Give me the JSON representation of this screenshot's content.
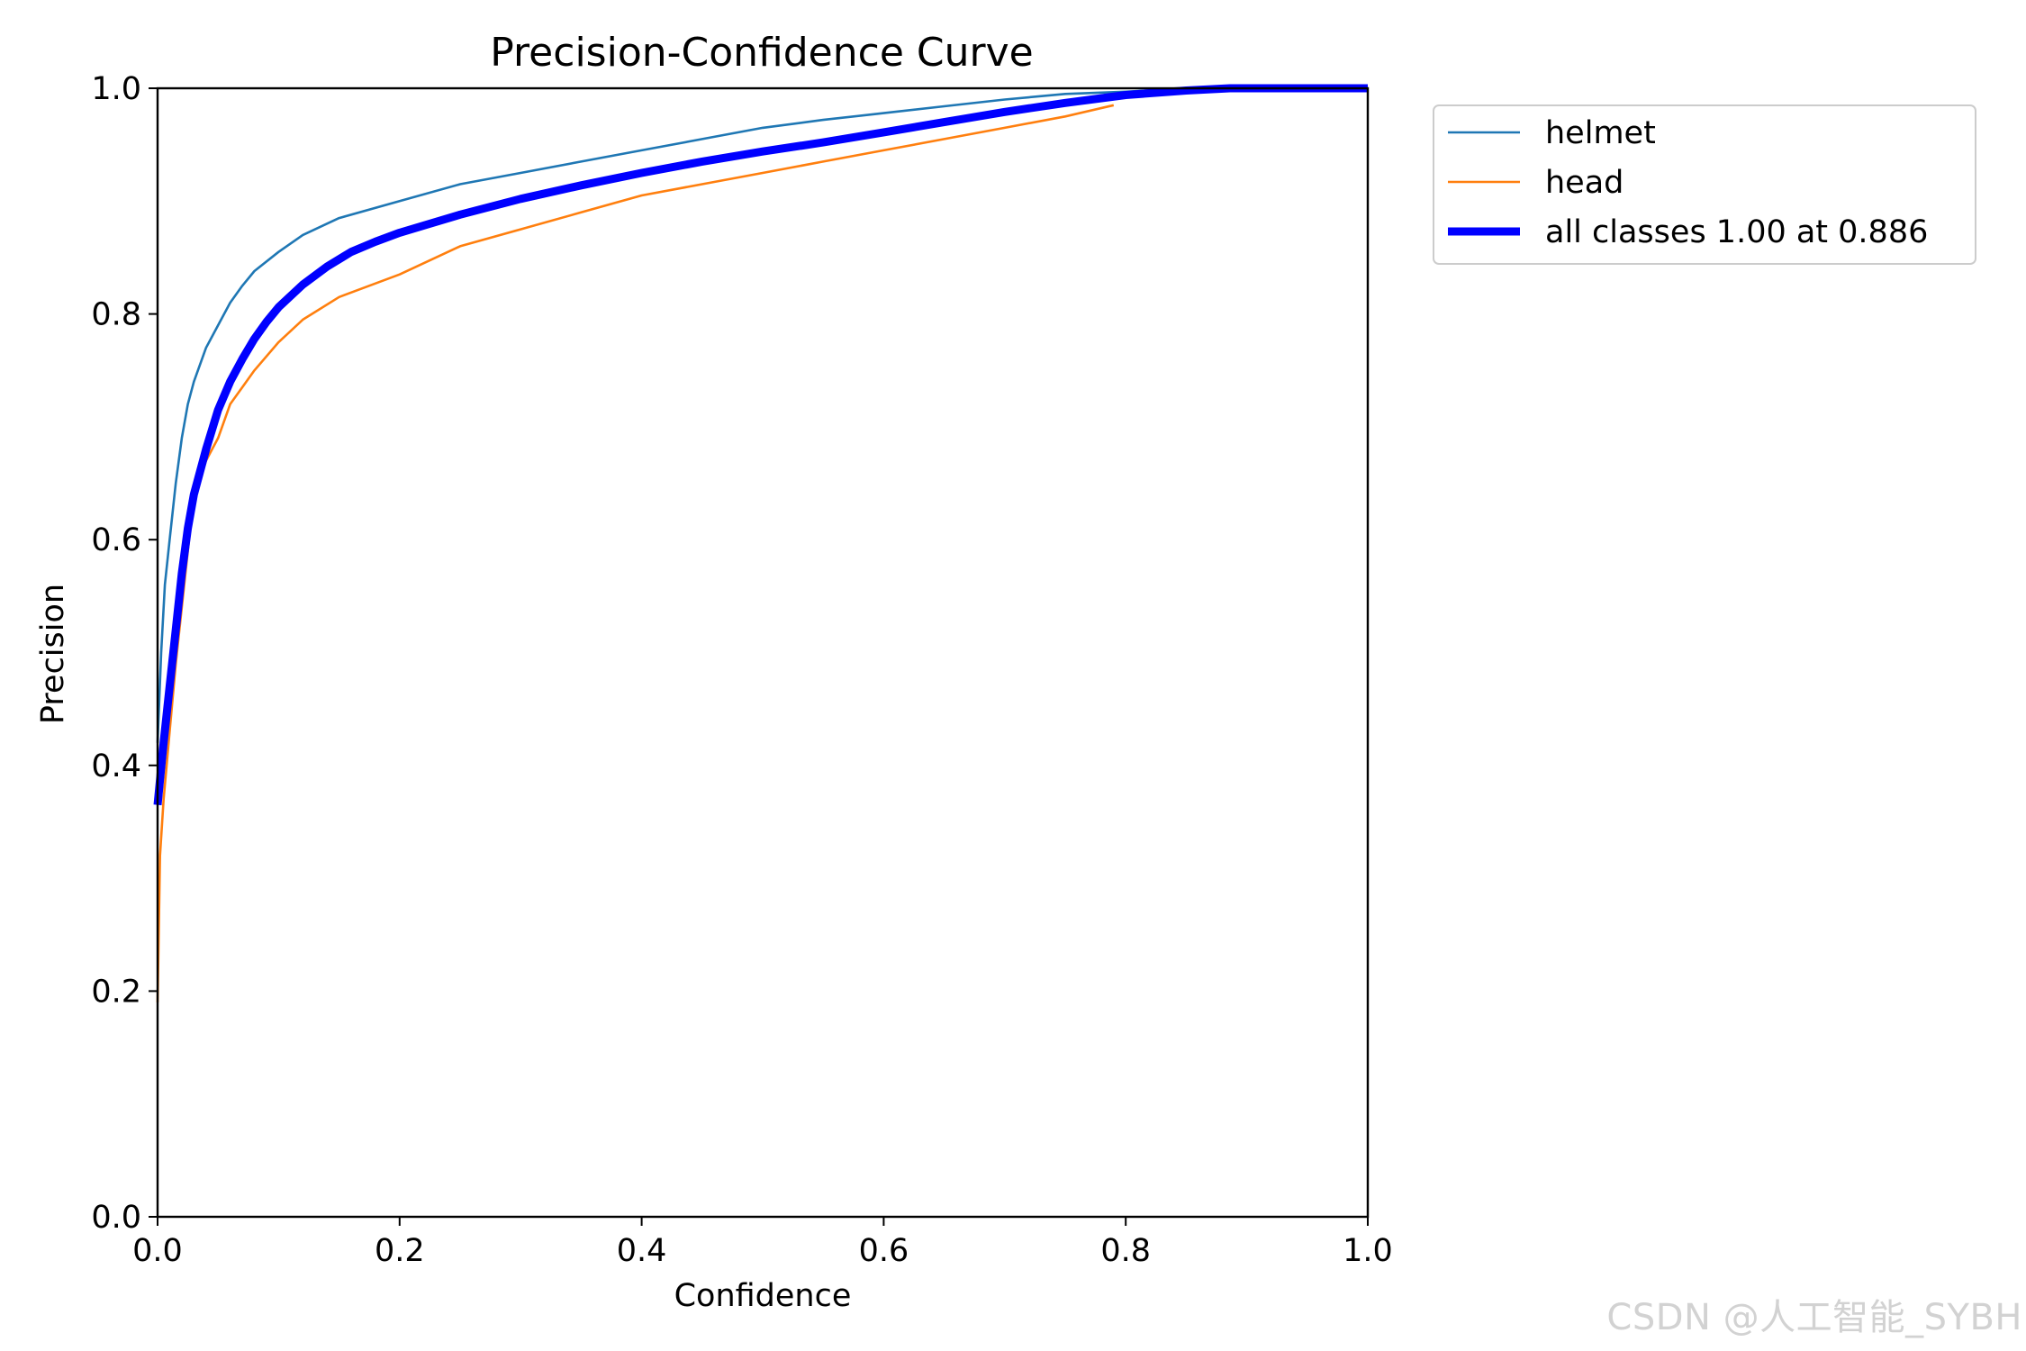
{
  "watermark": "CSDN @人工智能_SYBH",
  "chart_data": {
    "type": "line",
    "title": "Precision-Confidence Curve",
    "xlabel": "Confidence",
    "ylabel": "Precision",
    "xlim": [
      0.0,
      1.0
    ],
    "ylim": [
      0.0,
      1.0
    ],
    "xticks": [
      "0.0",
      "0.2",
      "0.4",
      "0.6",
      "0.8",
      "1.0"
    ],
    "yticks": [
      "0.0",
      "0.2",
      "0.4",
      "0.6",
      "0.8",
      "1.0"
    ],
    "grid": false,
    "legend_position": "outside-top-right",
    "series": [
      {
        "name": "helmet",
        "color": "#1f77b4",
        "style": "thin",
        "x": [
          0.0,
          0.003,
          0.006,
          0.01,
          0.015,
          0.02,
          0.025,
          0.03,
          0.04,
          0.05,
          0.06,
          0.07,
          0.08,
          0.1,
          0.12,
          0.15,
          0.2,
          0.25,
          0.3,
          0.35,
          0.4,
          0.45,
          0.5,
          0.55,
          0.6,
          0.65,
          0.7,
          0.75,
          0.8,
          0.85,
          0.9,
          1.0
        ],
        "y": [
          0.42,
          0.5,
          0.56,
          0.6,
          0.65,
          0.69,
          0.72,
          0.74,
          0.77,
          0.79,
          0.81,
          0.825,
          0.838,
          0.855,
          0.87,
          0.885,
          0.9,
          0.915,
          0.925,
          0.935,
          0.945,
          0.955,
          0.965,
          0.972,
          0.978,
          0.984,
          0.99,
          0.995,
          0.997,
          1.0,
          1.0,
          1.0
        ]
      },
      {
        "name": "head",
        "color": "#ff7f0e",
        "style": "thin",
        "x": [
          0.0,
          0.002,
          0.005,
          0.01,
          0.015,
          0.02,
          0.025,
          0.03,
          0.04,
          0.05,
          0.06,
          0.07,
          0.08,
          0.1,
          0.12,
          0.15,
          0.2,
          0.25,
          0.3,
          0.35,
          0.4,
          0.45,
          0.5,
          0.55,
          0.6,
          0.65,
          0.7,
          0.75,
          0.79
        ],
        "y": [
          0.19,
          0.32,
          0.37,
          0.43,
          0.49,
          0.54,
          0.59,
          0.64,
          0.67,
          0.69,
          0.72,
          0.735,
          0.75,
          0.775,
          0.795,
          0.815,
          0.835,
          0.86,
          0.875,
          0.89,
          0.905,
          0.915,
          0.925,
          0.935,
          0.945,
          0.955,
          0.965,
          0.975,
          0.985
        ]
      },
      {
        "name": "all classes 1.00 at 0.886",
        "color": "#0000ff",
        "style": "thick",
        "x": [
          0.0,
          0.005,
          0.01,
          0.015,
          0.02,
          0.025,
          0.03,
          0.04,
          0.05,
          0.06,
          0.07,
          0.08,
          0.09,
          0.1,
          0.12,
          0.14,
          0.16,
          0.18,
          0.2,
          0.25,
          0.3,
          0.35,
          0.4,
          0.45,
          0.5,
          0.55,
          0.6,
          0.65,
          0.7,
          0.75,
          0.8,
          0.85,
          0.886,
          0.9,
          1.0
        ],
        "y": [
          0.365,
          0.42,
          0.47,
          0.52,
          0.57,
          0.61,
          0.64,
          0.68,
          0.715,
          0.74,
          0.76,
          0.778,
          0.793,
          0.806,
          0.826,
          0.842,
          0.855,
          0.864,
          0.872,
          0.888,
          0.902,
          0.914,
          0.925,
          0.935,
          0.944,
          0.952,
          0.961,
          0.97,
          0.979,
          0.987,
          0.994,
          0.998,
          1.0,
          1.0,
          1.0
        ]
      }
    ]
  }
}
